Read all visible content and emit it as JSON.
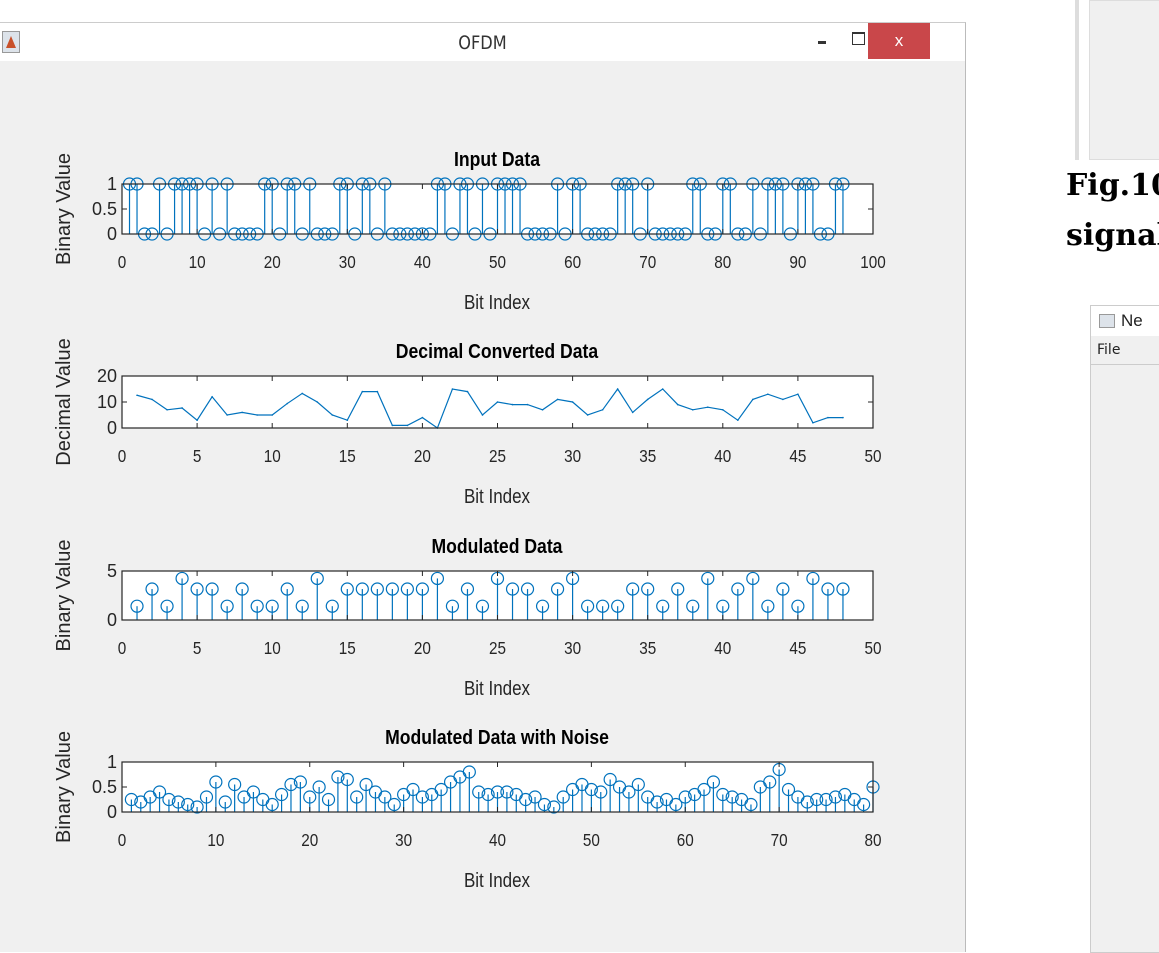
{
  "window": {
    "title": "OFDM",
    "close_label": "x"
  },
  "side_caption": {
    "line1": "Fig.10",
    "line2": "signal"
  },
  "side_window": {
    "title": "Ne",
    "menu_file": "File"
  },
  "colors": {
    "series": "#0072bd",
    "figure_bg": "#f0f0f0",
    "close": "#c9474a"
  },
  "chart_data": [
    {
      "type": "stem",
      "title": "Input Data",
      "xlabel": "Bit Index",
      "ylabel": "Binary Value",
      "xlim": [
        0,
        100
      ],
      "ylim": [
        0,
        1
      ],
      "xticks": [
        0,
        10,
        20,
        30,
        40,
        50,
        60,
        70,
        80,
        90,
        100
      ],
      "yticks": [
        0,
        0.5,
        1
      ],
      "ytick_labels": [
        "0",
        "0.5",
        "1"
      ],
      "x_start": 1,
      "values": [
        1,
        1,
        0,
        0,
        1,
        0,
        1,
        1,
        1,
        1,
        0,
        1,
        0,
        1,
        0,
        0,
        0,
        0,
        1,
        1,
        0,
        1,
        1,
        0,
        1,
        0,
        0,
        0,
        1,
        1,
        0,
        1,
        1,
        0,
        1,
        0,
        0,
        0,
        0,
        0,
        0,
        1,
        1,
        0,
        1,
        1,
        0,
        1,
        0,
        1,
        1,
        1,
        1,
        0,
        0,
        0,
        0,
        1,
        0,
        1,
        1,
        0,
        0,
        0,
        0,
        1,
        1,
        1,
        0,
        1,
        0,
        0,
        0,
        0,
        0,
        1,
        1,
        0,
        0,
        1,
        1,
        0,
        0,
        1,
        0,
        1,
        1,
        1,
        0,
        1,
        1,
        1,
        0,
        0,
        1,
        1
      ]
    },
    {
      "type": "line",
      "title": "Decimal Converted Data",
      "xlabel": "Bit Index",
      "ylabel": "Decimal Value",
      "xlim": [
        0,
        50
      ],
      "ylim": [
        0,
        20
      ],
      "xticks": [
        0,
        5,
        10,
        15,
        20,
        25,
        30,
        35,
        40,
        45,
        50
      ],
      "yticks": [
        0,
        10,
        20
      ],
      "ytick_labels": [
        "0",
        "10",
        "20"
      ],
      "x_start": 1,
      "values": [
        12.6,
        11,
        7,
        7.7,
        3,
        12,
        5,
        6,
        5,
        5,
        9.4,
        13.3,
        10,
        5,
        3,
        14,
        14,
        1,
        1,
        4,
        0,
        15,
        14,
        5,
        10,
        9,
        9,
        7,
        11,
        10,
        5,
        7,
        15,
        6,
        11,
        15,
        9,
        7,
        8,
        7,
        3,
        11,
        13,
        11,
        13,
        2,
        4,
        4
      ]
    },
    {
      "type": "stem",
      "title": "Modulated Data",
      "xlabel": "Bit Index",
      "ylabel": "Binary Value",
      "xlim": [
        0,
        50
      ],
      "ylim": [
        0,
        5
      ],
      "xticks": [
        0,
        5,
        10,
        15,
        20,
        25,
        30,
        35,
        40,
        45,
        50
      ],
      "yticks": [
        0,
        5
      ],
      "ytick_labels": [
        "0",
        "5"
      ],
      "x_start": 1,
      "values": [
        1.41,
        3.16,
        1.41,
        4.24,
        3.16,
        3.16,
        1.41,
        3.16,
        1.41,
        1.41,
        3.16,
        1.41,
        4.24,
        1.41,
        3.16,
        3.16,
        3.16,
        3.16,
        3.16,
        3.16,
        4.24,
        1.41,
        3.16,
        1.41,
        4.24,
        3.16,
        3.16,
        1.41,
        3.16,
        4.24,
        1.41,
        1.41,
        1.41,
        3.16,
        3.16,
        1.41,
        3.16,
        1.41,
        4.24,
        1.41,
        3.16,
        4.24,
        1.41,
        3.16,
        1.41,
        4.24,
        3.16,
        3.16
      ]
    },
    {
      "type": "stem",
      "title": "Modulated Data with Noise",
      "xlabel": "Bit Index",
      "ylabel": "Binary Value",
      "xlim": [
        0,
        80
      ],
      "ylim": [
        0,
        1
      ],
      "xticks": [
        0,
        10,
        20,
        30,
        40,
        50,
        60,
        70,
        80
      ],
      "yticks": [
        0,
        0.5,
        1
      ],
      "ytick_labels": [
        "0",
        "0.5",
        "1"
      ],
      "x_start": 1,
      "values": [
        0.25,
        0.2,
        0.3,
        0.4,
        0.25,
        0.2,
        0.15,
        0.1,
        0.3,
        0.6,
        0.2,
        0.55,
        0.3,
        0.4,
        0.25,
        0.15,
        0.35,
        0.55,
        0.6,
        0.3,
        0.5,
        0.25,
        0.7,
        0.65,
        0.3,
        0.55,
        0.4,
        0.3,
        0.15,
        0.35,
        0.45,
        0.3,
        0.35,
        0.45,
        0.6,
        0.7,
        0.8,
        0.4,
        0.35,
        0.4,
        0.4,
        0.35,
        0.25,
        0.3,
        0.15,
        0.1,
        0.3,
        0.45,
        0.55,
        0.45,
        0.4,
        0.65,
        0.5,
        0.4,
        0.55,
        0.3,
        0.2,
        0.25,
        0.15,
        0.3,
        0.35,
        0.45,
        0.6,
        0.35,
        0.3,
        0.25,
        0.15,
        0.5,
        0.6,
        0.85,
        0.45,
        0.3,
        0.2,
        0.25,
        0.25,
        0.3,
        0.35,
        0.25,
        0.15,
        0.5
      ]
    }
  ]
}
